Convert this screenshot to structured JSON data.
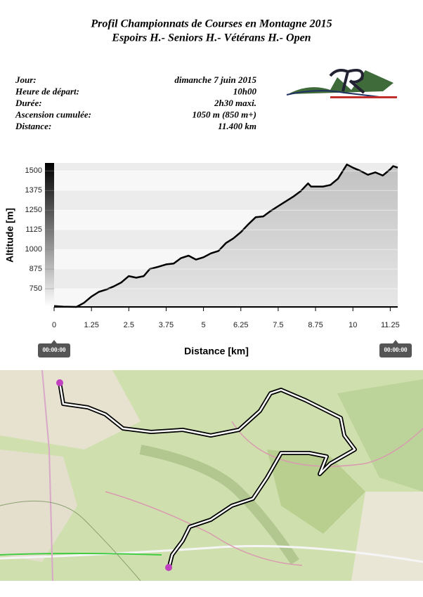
{
  "header": {
    "title": "Profil Championnats de Courses en Montagne 2015",
    "subtitle": "Espoirs H.- Seniors H.- Vétérans H.- Open"
  },
  "info": [
    {
      "label": "Jour:",
      "value": "dimanche 7 juin 2015"
    },
    {
      "label": "Heure de départ:",
      "value": "10h00"
    },
    {
      "label": "Durée:",
      "value": "2h30 maxi."
    },
    {
      "label": "Ascension cumulée:",
      "value": "1050 m (850 m+)"
    },
    {
      "label": "Distance:",
      "value": "11.400 km"
    }
  ],
  "chart_data": {
    "type": "area",
    "xlabel": "Distance [km]",
    "ylabel": "Altitude [m]",
    "x": [
      0,
      0.3,
      0.75,
      1.0,
      1.25,
      1.5,
      1.75,
      2.0,
      2.25,
      2.5,
      2.75,
      3.0,
      3.2,
      3.5,
      3.75,
      4.0,
      4.25,
      4.5,
      4.75,
      5.0,
      5.25,
      5.5,
      5.75,
      6.0,
      6.25,
      6.5,
      6.75,
      7.0,
      7.25,
      7.5,
      7.75,
      8.0,
      8.25,
      8.5,
      8.6,
      9.0,
      9.25,
      9.5,
      9.8,
      10.0,
      10.25,
      10.5,
      10.75,
      11.0,
      11.25,
      11.35,
      11.5
    ],
    "values": [
      640,
      636,
      634,
      660,
      700,
      730,
      745,
      765,
      790,
      830,
      820,
      830,
      875,
      890,
      905,
      910,
      945,
      960,
      935,
      950,
      975,
      990,
      1040,
      1070,
      1110,
      1160,
      1205,
      1210,
      1245,
      1275,
      1305,
      1335,
      1370,
      1420,
      1400,
      1400,
      1410,
      1450,
      1540,
      1520,
      1500,
      1475,
      1490,
      1470,
      1510,
      1530,
      1520
    ],
    "xlim": [
      0,
      11.5
    ],
    "ylim": [
      634,
      1550
    ],
    "xticks": [
      0,
      1.25,
      2.5,
      3.75,
      5,
      6.25,
      7.5,
      8.75,
      10,
      11.25
    ],
    "yticks": [
      750,
      875,
      1000,
      1125,
      1250,
      1375,
      1500
    ],
    "grid": true,
    "color": "#000000",
    "time_start": "00:00:00",
    "time_end": "00:00:00"
  }
}
